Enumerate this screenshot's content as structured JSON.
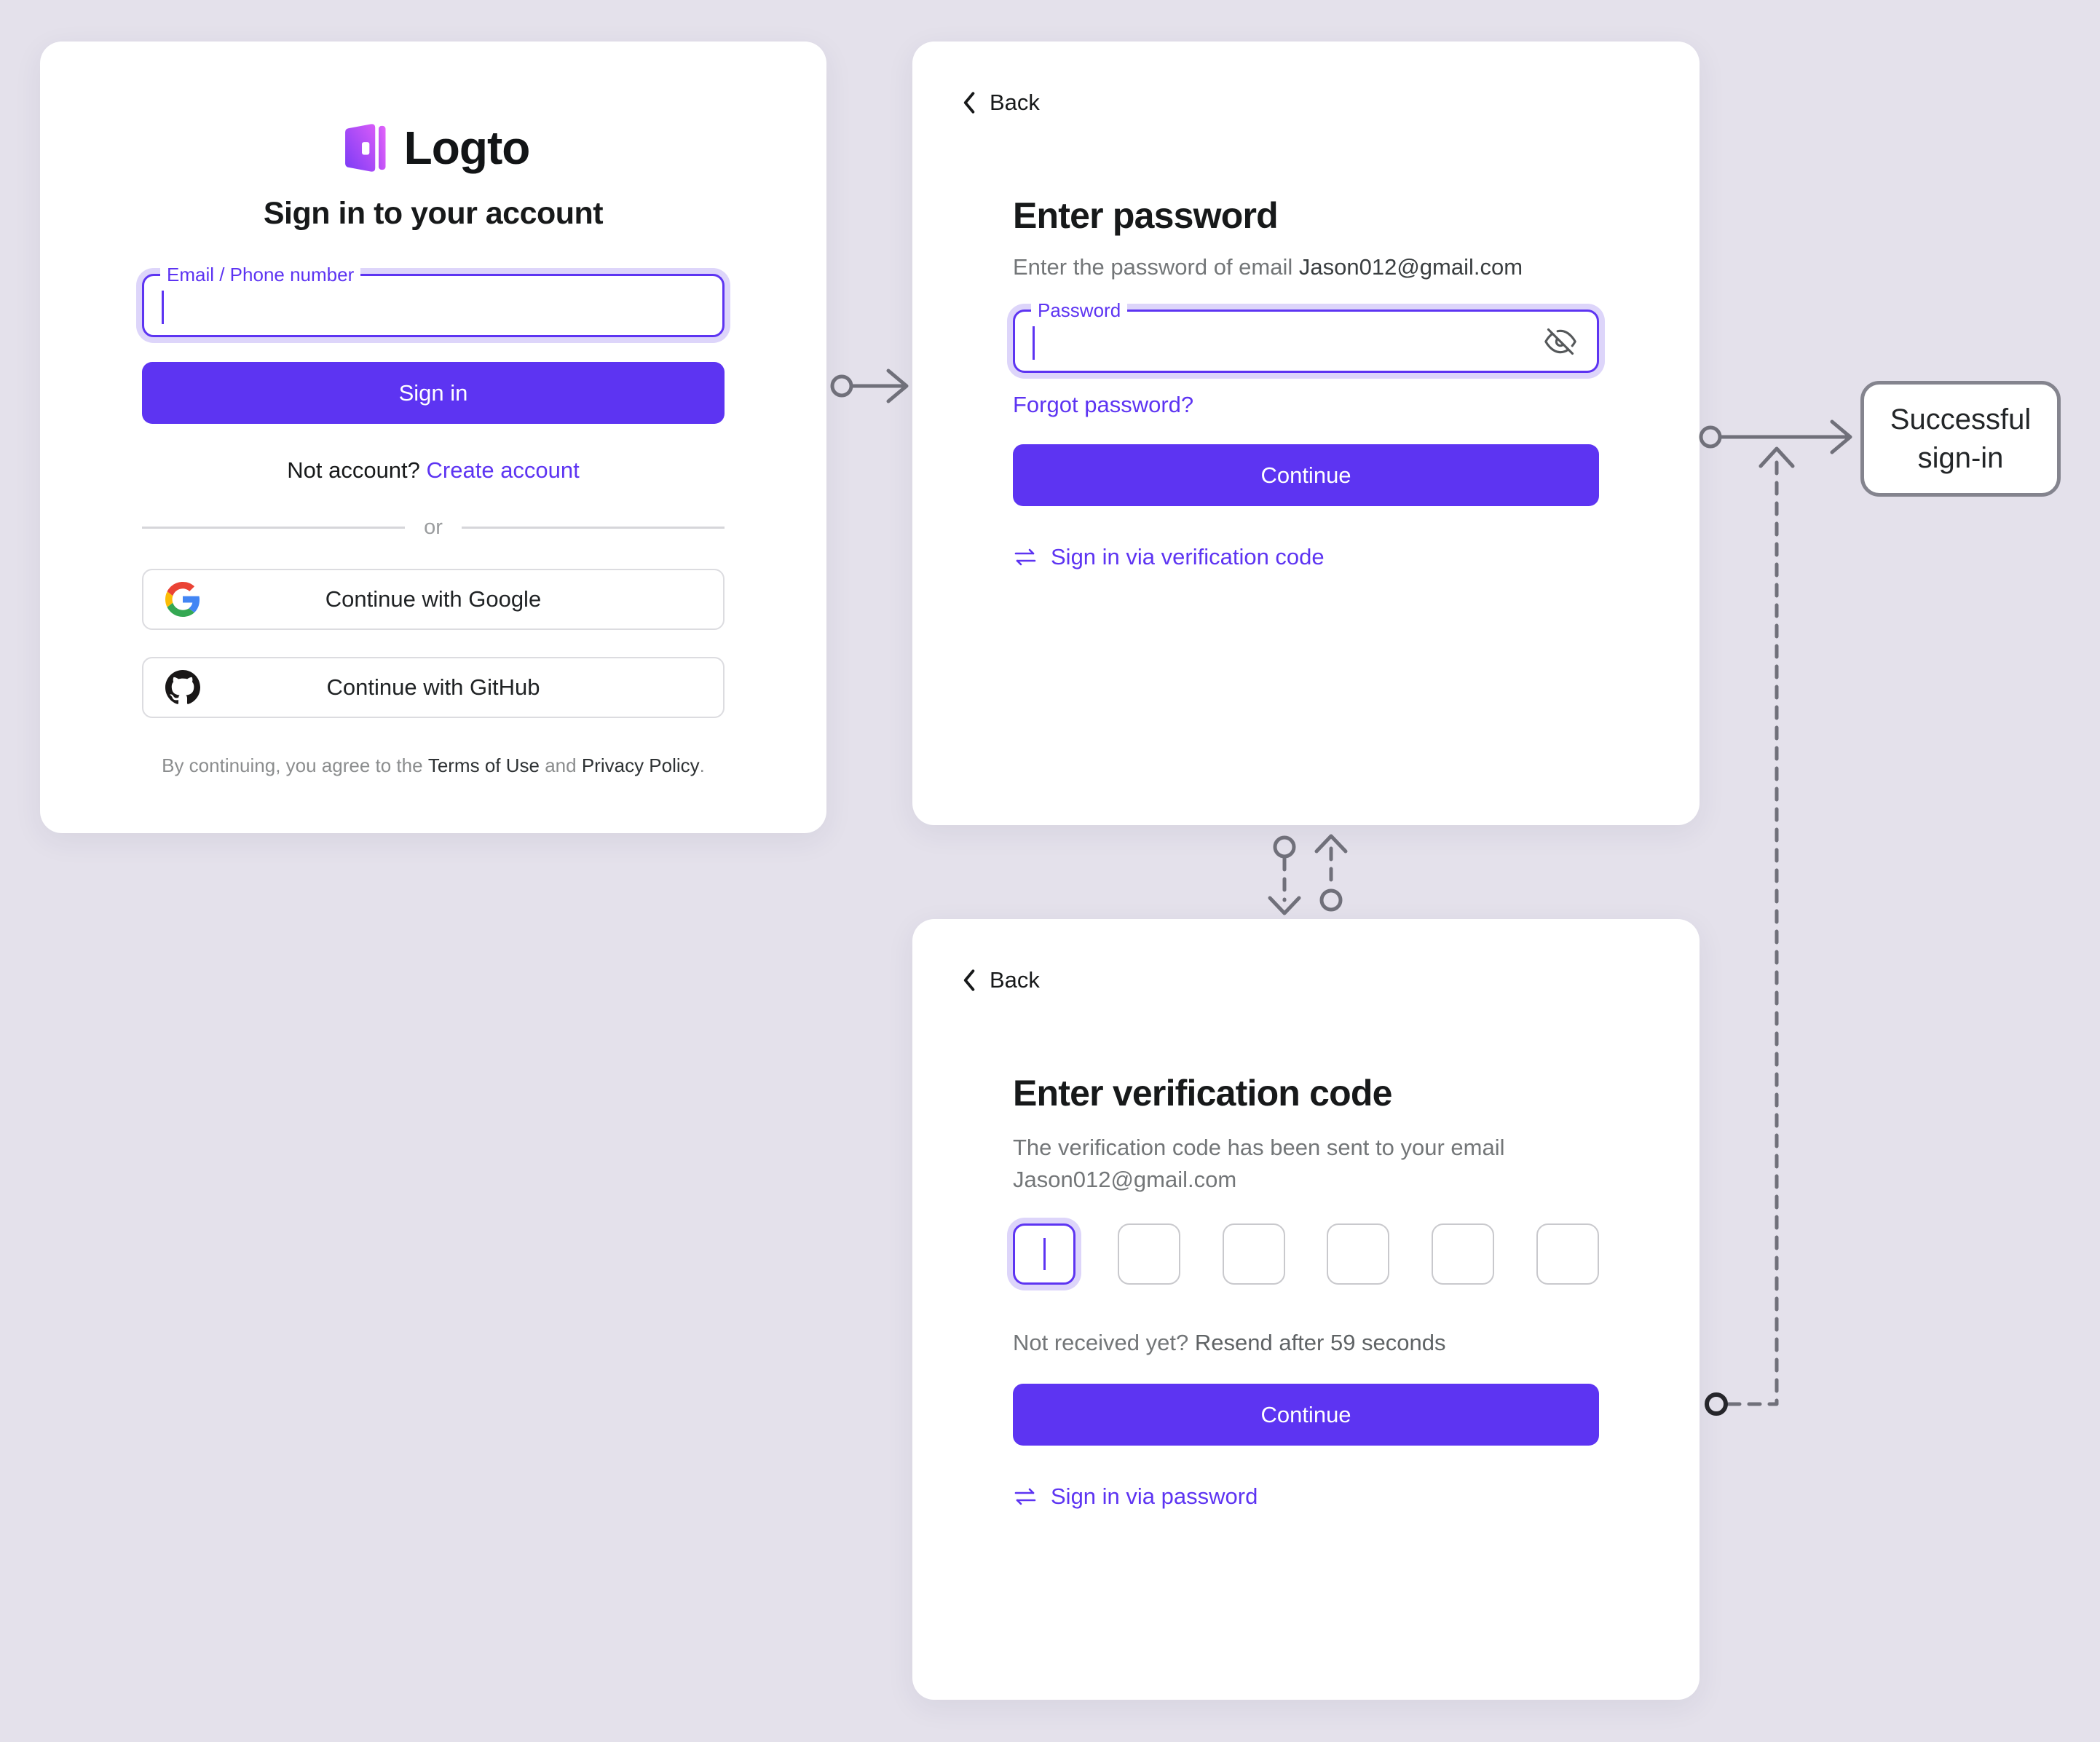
{
  "canvas": {
    "bg": "#e4e1eb",
    "brand": "#5d34f2"
  },
  "signin_card": {
    "logo": {
      "icon_name": "logto-door-logo",
      "text": "Logto"
    },
    "title": "Sign in to your account",
    "identifier_field": {
      "label": "Email / Phone number",
      "value": ""
    },
    "signin_button_label": "Sign in",
    "create_account": {
      "prefix": "Not account?",
      "link": "Create account"
    },
    "divider_label": "or",
    "social_buttons": {
      "google": "Continue with Google",
      "github": "Continue with GitHub"
    },
    "terms": {
      "prefix": "By continuing, you agree to the",
      "terms_link": "Terms of Use",
      "conjunction": "and",
      "privacy_link": "Privacy Policy",
      "suffix": "."
    }
  },
  "password_card": {
    "back_label": "Back",
    "title": "Enter password",
    "subtitle_prefix": "Enter the password of email",
    "subtitle_email": "Jason012@gmail.com",
    "password_field": {
      "label": "Password",
      "value": ""
    },
    "forgot_password_link": "Forgot password?",
    "continue_button_label": "Continue",
    "switch_method_link": "Sign in via verification code"
  },
  "verification_card": {
    "back_label": "Back",
    "title": "Enter verification code",
    "subtitle": "The verification code has been sent to your email",
    "subtitle_email": "Jason012@gmail.com",
    "code_length": 6,
    "resend_prefix": "Not received yet?",
    "resend_countdown": "Resend after 59 seconds",
    "continue_button_label": "Continue",
    "switch_method_link": "Sign in via password"
  },
  "success_node": {
    "label": "Successful sign-in"
  }
}
